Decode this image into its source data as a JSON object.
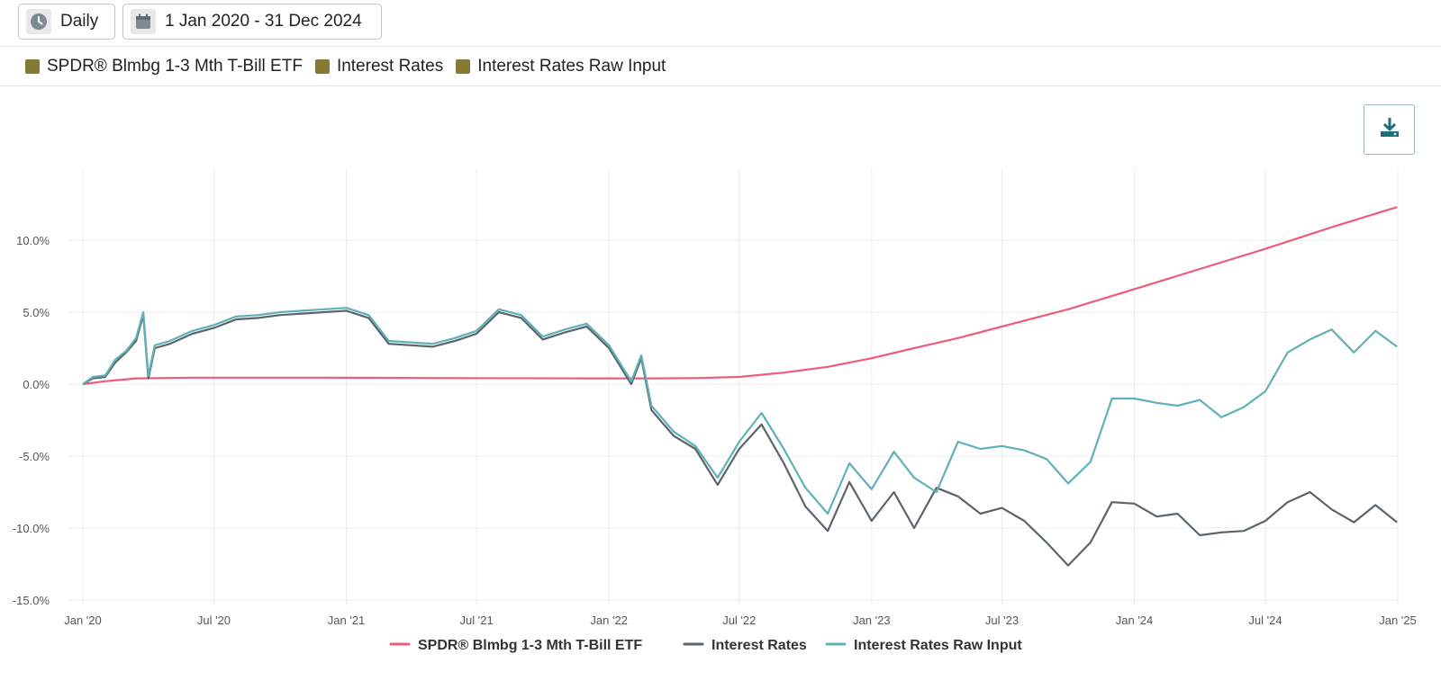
{
  "toolbar": {
    "frequency_label": "Daily",
    "range_label": "1 Jan 2020 - 31 Dec 2024"
  },
  "filters": [
    {
      "label": "SPDR® Blmbg 1-3 Mth T-Bill ETF",
      "color": "#857a34"
    },
    {
      "label": "Interest Rates",
      "color": "#857a34"
    },
    {
      "label": "Interest Rates Raw Input",
      "color": "#857a34"
    }
  ],
  "icons": {
    "frequency": "clock-icon",
    "range": "calendar-icon",
    "download": "download-icon"
  },
  "chart_data": {
    "type": "line",
    "title": "",
    "xlabel": "",
    "ylabel": "",
    "x_ticks": [
      "Jan '20",
      "Jul '20",
      "Jan '21",
      "Jul '21",
      "Jan '22",
      "Jul '22",
      "Jan '23",
      "Jul '23",
      "Jan '24",
      "Jul '24",
      "Jan '25"
    ],
    "y_ticks": [
      "10.0%",
      "5.0%",
      "0.0%",
      "-5.0%",
      "-10.0%",
      "-15.0%"
    ],
    "ylim": [
      -15,
      15
    ],
    "xlim": [
      "2020-01-01",
      "2025-01-01"
    ],
    "grid": true,
    "legend_position": "bottom",
    "series": [
      {
        "name": "SPDR® Blmbg 1-3 Mth T-Bill ETF",
        "color": "#ee5b7c",
        "points": [
          [
            "2020-01-01",
            0.0
          ],
          [
            "2020-02-01",
            0.2
          ],
          [
            "2020-03-15",
            0.4
          ],
          [
            "2020-06-01",
            0.45
          ],
          [
            "2020-12-01",
            0.45
          ],
          [
            "2021-06-01",
            0.42
          ],
          [
            "2021-12-01",
            0.4
          ],
          [
            "2022-03-01",
            0.4
          ],
          [
            "2022-05-01",
            0.42
          ],
          [
            "2022-07-01",
            0.5
          ],
          [
            "2022-09-01",
            0.8
          ],
          [
            "2022-11-01",
            1.2
          ],
          [
            "2023-01-01",
            1.8
          ],
          [
            "2023-03-01",
            2.5
          ],
          [
            "2023-05-01",
            3.2
          ],
          [
            "2023-07-01",
            4.0
          ],
          [
            "2023-10-01",
            5.2
          ],
          [
            "2024-01-01",
            6.6
          ],
          [
            "2024-04-01",
            8.0
          ],
          [
            "2024-07-01",
            9.4
          ],
          [
            "2024-10-01",
            10.9
          ],
          [
            "2024-12-31",
            12.3
          ]
        ]
      },
      {
        "name": "Interest Rates",
        "color": "#5a656b",
        "points": [
          [
            "2020-01-01",
            0.0
          ],
          [
            "2020-01-15",
            0.4
          ],
          [
            "2020-02-01",
            0.5
          ],
          [
            "2020-02-15",
            1.5
          ],
          [
            "2020-03-01",
            2.2
          ],
          [
            "2020-03-15",
            3.0
          ],
          [
            "2020-03-25",
            4.8
          ],
          [
            "2020-04-01",
            0.4
          ],
          [
            "2020-04-10",
            2.5
          ],
          [
            "2020-05-01",
            2.8
          ],
          [
            "2020-06-01",
            3.5
          ],
          [
            "2020-07-01",
            3.9
          ],
          [
            "2020-08-01",
            4.5
          ],
          [
            "2020-09-01",
            4.6
          ],
          [
            "2020-10-01",
            4.8
          ],
          [
            "2020-11-01",
            4.9
          ],
          [
            "2020-12-01",
            5.0
          ],
          [
            "2021-01-01",
            5.1
          ],
          [
            "2021-02-01",
            4.6
          ],
          [
            "2021-03-01",
            2.8
          ],
          [
            "2021-04-01",
            2.7
          ],
          [
            "2021-05-01",
            2.6
          ],
          [
            "2021-06-01",
            3.0
          ],
          [
            "2021-07-01",
            3.5
          ],
          [
            "2021-08-01",
            5.0
          ],
          [
            "2021-09-01",
            4.6
          ],
          [
            "2021-10-01",
            3.1
          ],
          [
            "2021-11-01",
            3.6
          ],
          [
            "2021-12-01",
            4.0
          ],
          [
            "2022-01-01",
            2.5
          ],
          [
            "2022-02-01",
            0.0
          ],
          [
            "2022-02-15",
            1.8
          ],
          [
            "2022-03-01",
            -1.8
          ],
          [
            "2022-04-01",
            -3.6
          ],
          [
            "2022-05-01",
            -4.5
          ],
          [
            "2022-06-01",
            -7.0
          ],
          [
            "2022-07-01",
            -4.5
          ],
          [
            "2022-08-01",
            -2.8
          ],
          [
            "2022-09-01",
            -5.5
          ],
          [
            "2022-10-01",
            -8.5
          ],
          [
            "2022-11-01",
            -10.2
          ],
          [
            "2022-12-01",
            -6.8
          ],
          [
            "2023-01-01",
            -9.5
          ],
          [
            "2023-02-01",
            -7.5
          ],
          [
            "2023-03-01",
            -10.0
          ],
          [
            "2023-04-01",
            -7.2
          ],
          [
            "2023-05-01",
            -7.8
          ],
          [
            "2023-06-01",
            -9.0
          ],
          [
            "2023-07-01",
            -8.6
          ],
          [
            "2023-08-01",
            -9.5
          ],
          [
            "2023-09-01",
            -11.0
          ],
          [
            "2023-10-01",
            -12.6
          ],
          [
            "2023-11-01",
            -11.0
          ],
          [
            "2023-12-01",
            -8.2
          ],
          [
            "2024-01-01",
            -8.3
          ],
          [
            "2024-02-01",
            -9.2
          ],
          [
            "2024-03-01",
            -9.0
          ],
          [
            "2024-04-01",
            -10.5
          ],
          [
            "2024-05-01",
            -10.3
          ],
          [
            "2024-06-01",
            -10.2
          ],
          [
            "2024-07-01",
            -9.5
          ],
          [
            "2024-08-01",
            -8.2
          ],
          [
            "2024-09-01",
            -7.5
          ],
          [
            "2024-10-01",
            -8.7
          ],
          [
            "2024-11-01",
            -9.6
          ],
          [
            "2024-12-01",
            -8.4
          ],
          [
            "2024-12-31",
            -9.6
          ]
        ]
      },
      {
        "name": "Interest Rates Raw Input",
        "color": "#5fb1b8",
        "points": [
          [
            "2020-01-01",
            0.0
          ],
          [
            "2020-01-15",
            0.5
          ],
          [
            "2020-02-01",
            0.6
          ],
          [
            "2020-02-15",
            1.7
          ],
          [
            "2020-03-01",
            2.3
          ],
          [
            "2020-03-15",
            3.2
          ],
          [
            "2020-03-25",
            5.0
          ],
          [
            "2020-04-01",
            0.6
          ],
          [
            "2020-04-10",
            2.7
          ],
          [
            "2020-05-01",
            3.0
          ],
          [
            "2020-06-01",
            3.7
          ],
          [
            "2020-07-01",
            4.1
          ],
          [
            "2020-08-01",
            4.7
          ],
          [
            "2020-09-01",
            4.8
          ],
          [
            "2020-10-01",
            5.0
          ],
          [
            "2020-11-01",
            5.1
          ],
          [
            "2020-12-01",
            5.2
          ],
          [
            "2021-01-01",
            5.3
          ],
          [
            "2021-02-01",
            4.8
          ],
          [
            "2021-03-01",
            3.0
          ],
          [
            "2021-04-01",
            2.9
          ],
          [
            "2021-05-01",
            2.8
          ],
          [
            "2021-06-01",
            3.2
          ],
          [
            "2021-07-01",
            3.7
          ],
          [
            "2021-08-01",
            5.2
          ],
          [
            "2021-09-01",
            4.8
          ],
          [
            "2021-10-01",
            3.3
          ],
          [
            "2021-11-01",
            3.8
          ],
          [
            "2021-12-01",
            4.2
          ],
          [
            "2022-01-01",
            2.7
          ],
          [
            "2022-02-01",
            0.2
          ],
          [
            "2022-02-15",
            2.0
          ],
          [
            "2022-03-01",
            -1.5
          ],
          [
            "2022-04-01",
            -3.3
          ],
          [
            "2022-05-01",
            -4.3
          ],
          [
            "2022-06-01",
            -6.5
          ],
          [
            "2022-07-01",
            -4.0
          ],
          [
            "2022-08-01",
            -2.0
          ],
          [
            "2022-09-01",
            -4.5
          ],
          [
            "2022-10-01",
            -7.2
          ],
          [
            "2022-11-01",
            -9.0
          ],
          [
            "2022-12-01",
            -5.5
          ],
          [
            "2023-01-01",
            -7.3
          ],
          [
            "2023-02-01",
            -4.7
          ],
          [
            "2023-03-01",
            -6.5
          ],
          [
            "2023-04-01",
            -7.5
          ],
          [
            "2023-05-01",
            -4.0
          ],
          [
            "2023-06-01",
            -4.5
          ],
          [
            "2023-07-01",
            -4.3
          ],
          [
            "2023-08-01",
            -4.6
          ],
          [
            "2023-09-01",
            -5.2
          ],
          [
            "2023-10-01",
            -6.9
          ],
          [
            "2023-11-01",
            -5.4
          ],
          [
            "2023-12-01",
            -1.0
          ],
          [
            "2024-01-01",
            -1.0
          ],
          [
            "2024-02-01",
            -1.3
          ],
          [
            "2024-03-01",
            -1.5
          ],
          [
            "2024-04-01",
            -1.1
          ],
          [
            "2024-05-01",
            -2.3
          ],
          [
            "2024-06-01",
            -1.6
          ],
          [
            "2024-07-01",
            -0.5
          ],
          [
            "2024-08-01",
            2.2
          ],
          [
            "2024-09-01",
            3.1
          ],
          [
            "2024-10-01",
            3.8
          ],
          [
            "2024-11-01",
            2.2
          ],
          [
            "2024-12-01",
            3.7
          ],
          [
            "2024-12-31",
            2.6
          ]
        ]
      }
    ]
  }
}
